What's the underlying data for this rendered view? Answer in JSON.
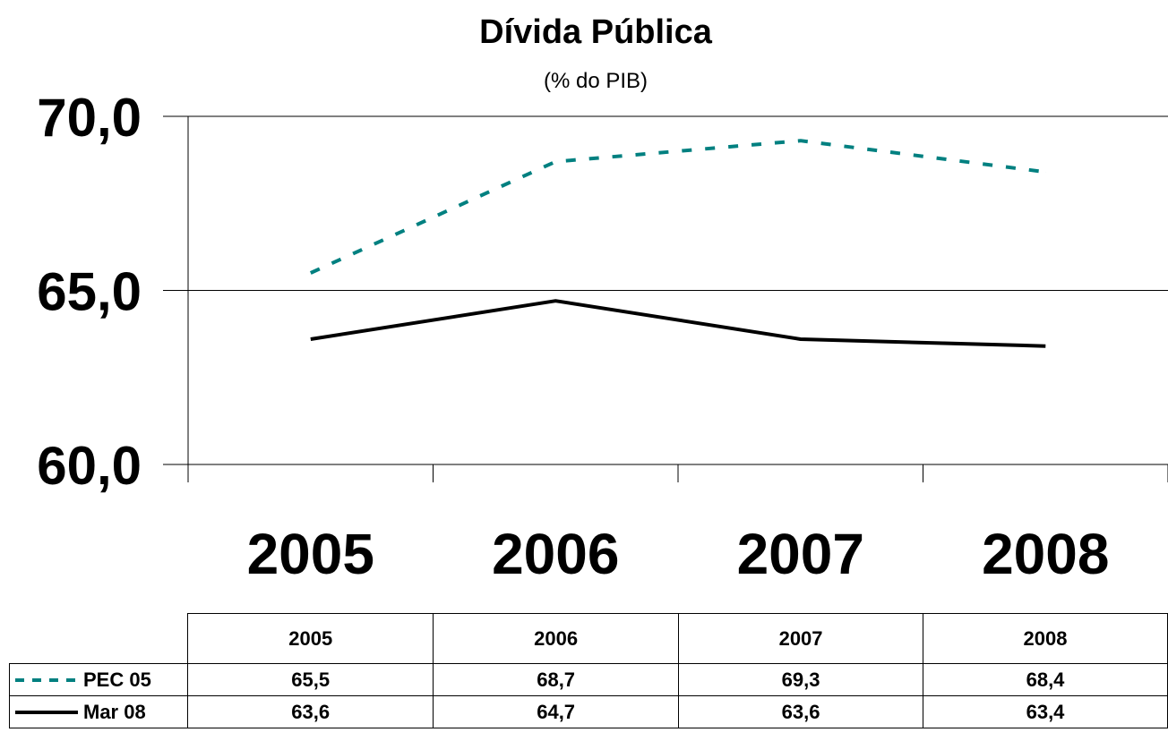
{
  "chart_data": {
    "type": "line",
    "title": "Dívida Pública",
    "subtitle": "(% do PIB)",
    "categories": [
      "2005",
      "2006",
      "2007",
      "2008"
    ],
    "y_ticks": [
      "60,0",
      "65,0",
      "70,0"
    ],
    "ylim": [
      60,
      70
    ],
    "grid": "horizontal",
    "series": [
      {
        "name": "PEC 05",
        "values": [
          65.5,
          68.7,
          69.3,
          68.4
        ],
        "display": [
          "65,5",
          "68,7",
          "69,3",
          "68,4"
        ],
        "color": "#008080",
        "style": "dashed"
      },
      {
        "name": "Mar 08",
        "values": [
          63.6,
          64.7,
          63.6,
          63.4
        ],
        "display": [
          "63,6",
          "64,7",
          "63,6",
          "63,4"
        ],
        "color": "#000000",
        "style": "solid"
      }
    ]
  }
}
